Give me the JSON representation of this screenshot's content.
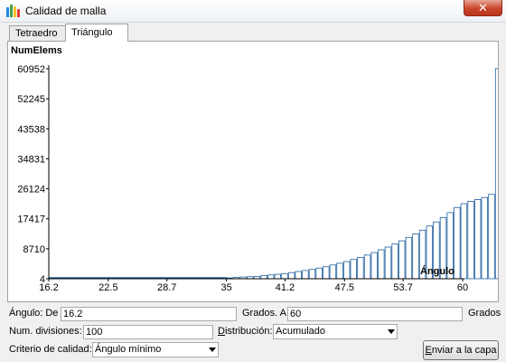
{
  "window": {
    "title": "Calidad de malla",
    "close_symbol": "✕"
  },
  "tabs": [
    {
      "label": "Tetraedro",
      "active": false
    },
    {
      "label": "Triángulo",
      "active": true
    }
  ],
  "chart_data": {
    "type": "bar",
    "ylabel": "NumElems",
    "xlabel": "Ángulo",
    "yticks": [
      "4",
      "8710",
      "17417",
      "26124",
      "34831",
      "43538",
      "52245",
      "60952"
    ],
    "ylim": [
      4,
      60952
    ],
    "xticks": [
      "16.2",
      "22.5",
      "28.7",
      "35",
      "41.2",
      "47.5",
      "53.7",
      "60"
    ],
    "xlim": [
      16.2,
      60
    ],
    "bar_color": "#1f5f9e",
    "bars_x_start": 35,
    "bars_x_step": 0.73,
    "values": [
      250,
      400,
      500,
      600,
      700,
      900,
      1100,
      1300,
      1500,
      1800,
      2100,
      2400,
      2700,
      3100,
      3500,
      4000,
      4500,
      5000,
      5600,
      6200,
      6900,
      7600,
      8400,
      9200,
      10100,
      11000,
      12000,
      13000,
      14100,
      15300,
      16500,
      17800,
      19200,
      20700,
      21800,
      22500,
      23000,
      23600,
      24500,
      61000
    ],
    "baseline_value": 4
  },
  "controls": {
    "angle_from_label": "Ángulo: De",
    "angle_from_value": "16.2",
    "angle_to_label": "Grados. A",
    "angle_to_value": "60",
    "degrees_label": "Grados",
    "divisions_label": "Num. divisiones:",
    "divisions_value": "100",
    "distribution_label": "Distribución:",
    "distribution_value": "Acumulado",
    "criteria_label": "Criterio de calidad:",
    "criteria_value": "Ángulo mínimo",
    "send_button_label": "Enviar a la capa"
  }
}
